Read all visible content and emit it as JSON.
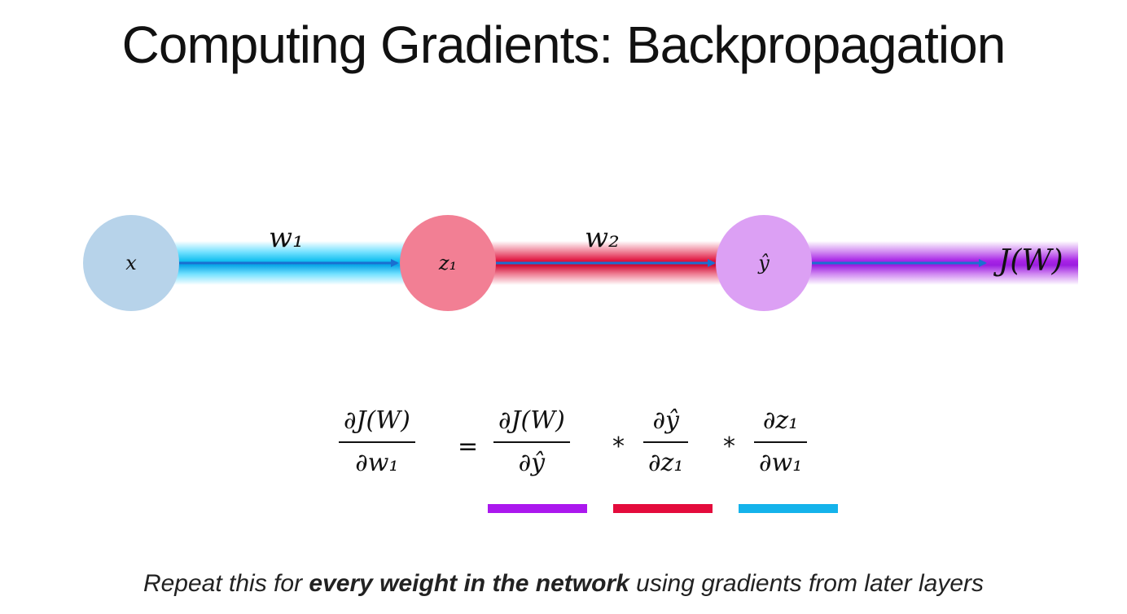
{
  "title": "Computing Gradients: Backpropagation",
  "diagram": {
    "nodes": [
      {
        "id": "x",
        "label": "x",
        "color": "#b7d3ea"
      },
      {
        "id": "z1",
        "label": "z₁",
        "color": "#f27f94"
      },
      {
        "id": "yhat",
        "label": "ŷ",
        "color": "#dca0f4"
      }
    ],
    "edges": [
      {
        "label": "w₁",
        "color": "#13bff0"
      },
      {
        "label": "w₂",
        "color": "#e0123e"
      }
    ],
    "output": {
      "label": "J(W)",
      "color": "#a824e6"
    }
  },
  "equation": {
    "lhs": {
      "num": "∂J(W)",
      "den": "∂w₁"
    },
    "equals": "=",
    "term1": {
      "num": "∂J(W)",
      "den": "∂ŷ",
      "underline_color": "#ab18ee"
    },
    "times1": "*",
    "term2": {
      "num": "∂ŷ",
      "den": "∂z₁",
      "underline_color": "#e40b3c"
    },
    "times2": "*",
    "term3": {
      "num": "∂z₁",
      "den": "∂w₁",
      "underline_color": "#14b3eb"
    }
  },
  "footer": {
    "before": "Repeat this for ",
    "emphasis": "every weight in the network",
    "after": " using gradients from later layers"
  }
}
